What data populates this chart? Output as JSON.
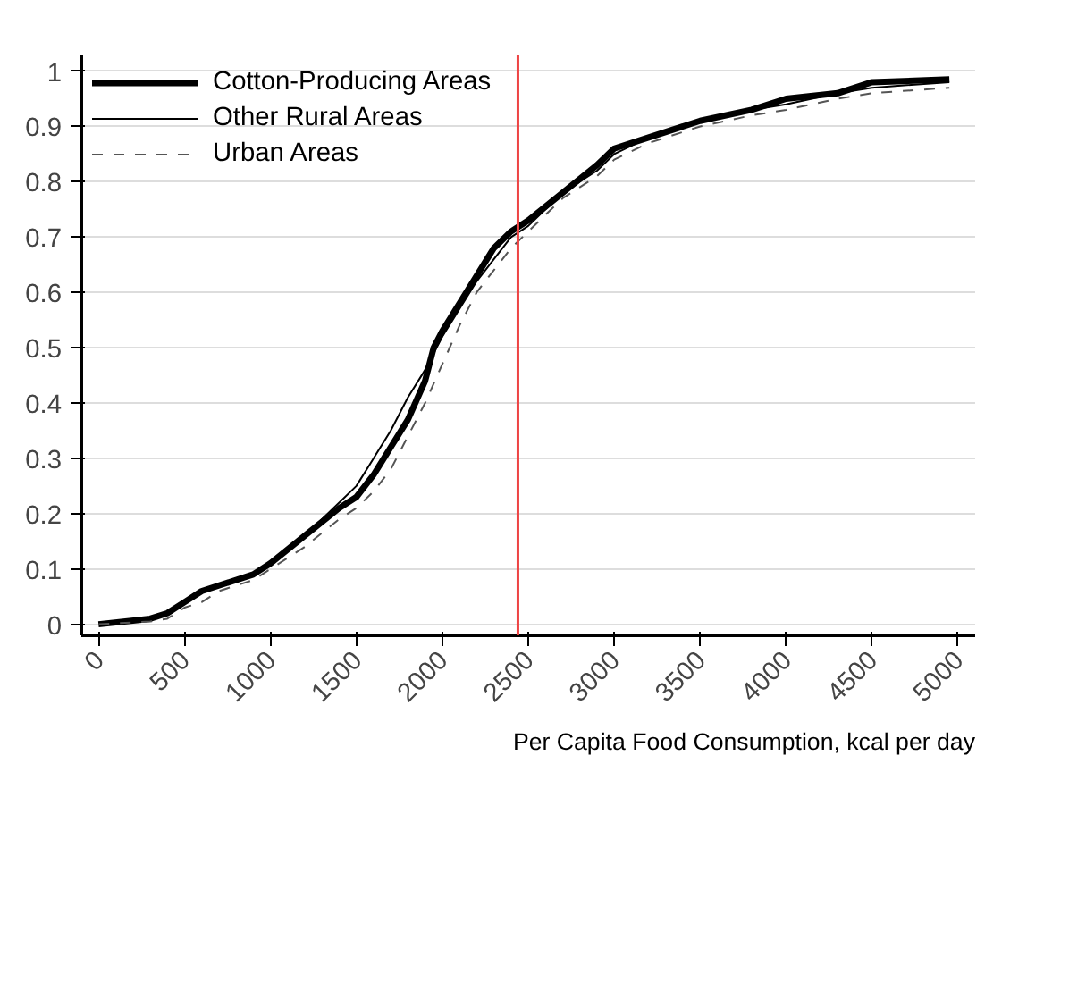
{
  "chart_data": {
    "type": "line",
    "xlabel": "Per Capita Food Consumption, kcal per day",
    "xlim": [
      -100,
      5100
    ],
    "ylim": [
      -0.02,
      1.03
    ],
    "xticks": [
      0,
      500,
      1000,
      1500,
      2000,
      2500,
      3000,
      3500,
      4000,
      4500,
      5000
    ],
    "yticks": [
      0,
      0.1,
      0.2,
      0.3,
      0.4,
      0.5,
      0.6,
      0.7,
      0.8,
      0.9,
      1
    ],
    "grid": "y",
    "legend": "top left",
    "ref_lines": [
      {
        "axis": "x",
        "value": 2440,
        "color": "#ee4444"
      }
    ],
    "series": [
      {
        "name": "Cotton-Producing Areas",
        "color": "#000000",
        "line_style": "solid",
        "x": [
          0,
          300,
          400,
          500,
          600,
          700,
          900,
          1000,
          1200,
          1400,
          1500,
          1600,
          1700,
          1800,
          1900,
          1950,
          2000,
          2100,
          2200,
          2300,
          2400,
          2500,
          2700,
          2900,
          3000,
          3200,
          3500,
          3800,
          4000,
          4300,
          4500,
          4950
        ],
        "values": [
          0,
          0.01,
          0.02,
          0.04,
          0.06,
          0.07,
          0.09,
          0.11,
          0.16,
          0.21,
          0.23,
          0.27,
          0.32,
          0.37,
          0.44,
          0.5,
          0.53,
          0.58,
          0.63,
          0.68,
          0.71,
          0.73,
          0.78,
          0.83,
          0.86,
          0.88,
          0.91,
          0.93,
          0.95,
          0.96,
          0.98,
          0.985
        ]
      },
      {
        "name": "Other Rural Areas",
        "color": "#000000",
        "line_style": "solid",
        "x": [
          0,
          300,
          400,
          500,
          600,
          700,
          900,
          1000,
          1200,
          1400,
          1500,
          1600,
          1700,
          1800,
          1900,
          2000,
          2100,
          2200,
          2300,
          2400,
          2500,
          2700,
          2900,
          3000,
          3200,
          3500,
          3800,
          4000,
          4300,
          4500,
          4950
        ],
        "values": [
          0,
          0.01,
          0.02,
          0.04,
          0.06,
          0.07,
          0.09,
          0.11,
          0.16,
          0.22,
          0.25,
          0.3,
          0.35,
          0.41,
          0.46,
          0.52,
          0.57,
          0.62,
          0.66,
          0.7,
          0.72,
          0.78,
          0.82,
          0.85,
          0.88,
          0.91,
          0.93,
          0.94,
          0.96,
          0.97,
          0.98
        ]
      },
      {
        "name": "Urban Areas",
        "color": "#555555",
        "line_style": "dashed",
        "x": [
          0,
          300,
          400,
          500,
          600,
          700,
          900,
          1000,
          1200,
          1400,
          1500,
          1600,
          1700,
          1800,
          1900,
          2000,
          2100,
          2200,
          2300,
          2400,
          2500,
          2700,
          2900,
          3000,
          3200,
          3500,
          3800,
          4000,
          4300,
          4500,
          4950
        ],
        "values": [
          0,
          0.005,
          0.01,
          0.03,
          0.04,
          0.06,
          0.08,
          0.1,
          0.14,
          0.19,
          0.21,
          0.24,
          0.28,
          0.34,
          0.4,
          0.47,
          0.54,
          0.6,
          0.64,
          0.68,
          0.71,
          0.77,
          0.81,
          0.84,
          0.87,
          0.9,
          0.92,
          0.93,
          0.95,
          0.96,
          0.97
        ]
      }
    ]
  }
}
